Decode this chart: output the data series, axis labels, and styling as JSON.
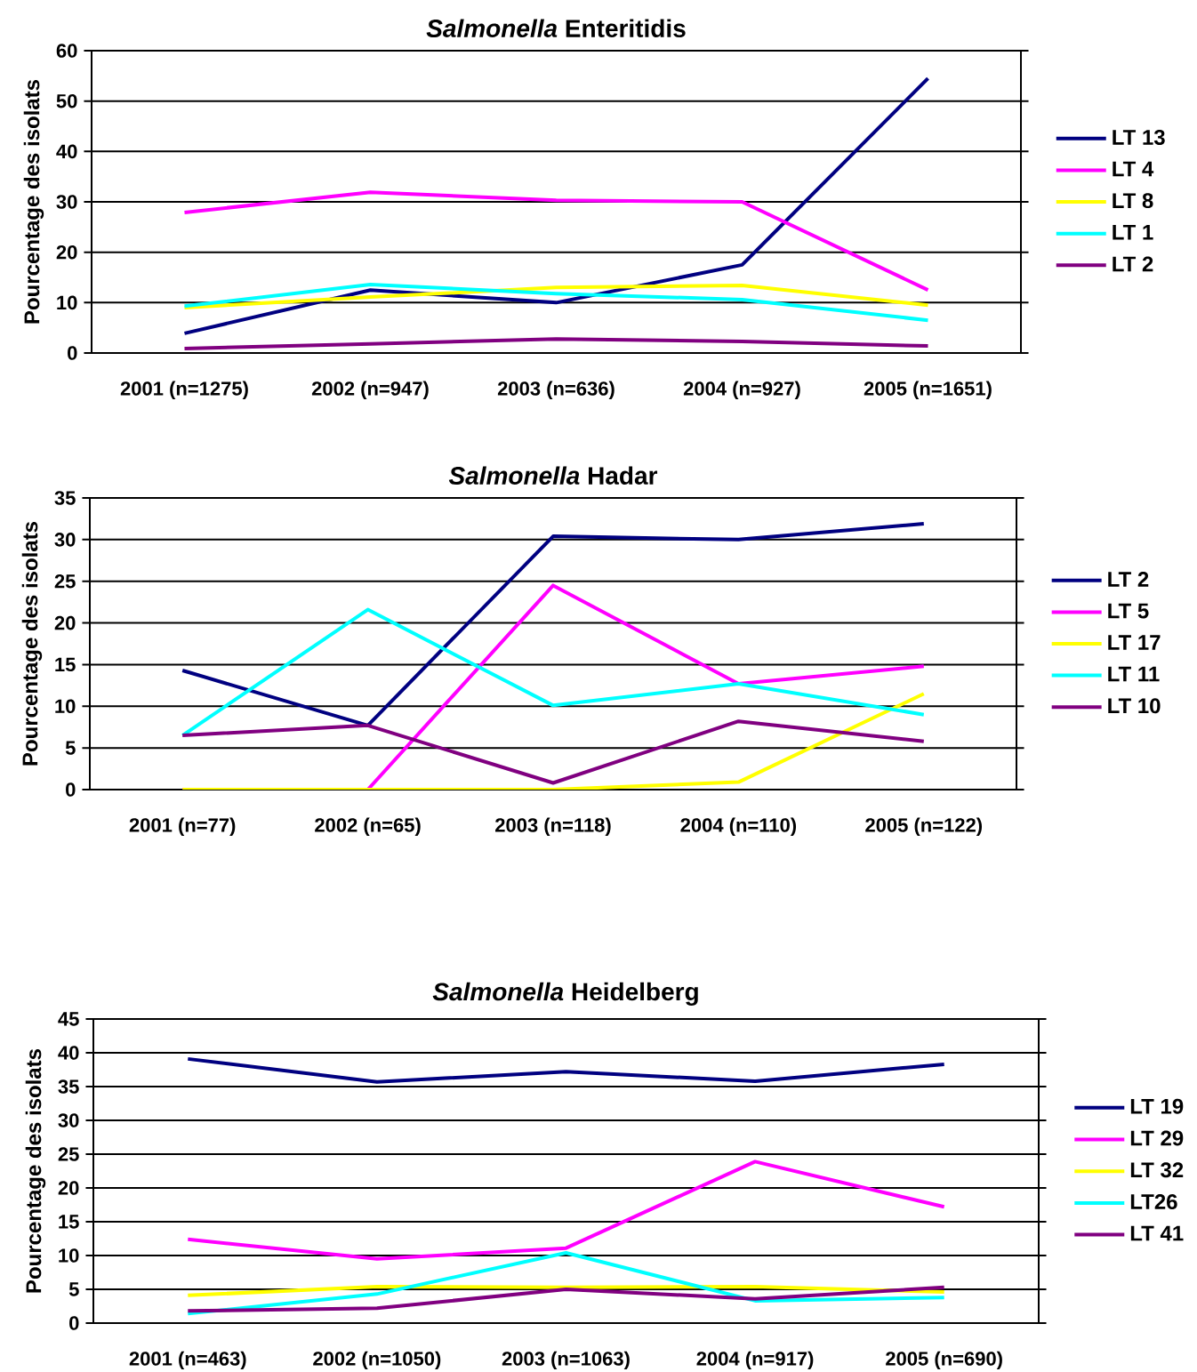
{
  "chart_data": [
    {
      "type": "line",
      "title": "*Salmonella* Enteritidis",
      "ylabel": "Pourcentage des isolats",
      "categories": [
        "2001 (n=1275)",
        "2002 (n=947)",
        "2003 (n=636)",
        "2004 (n=927)",
        "2005 (n=1651)"
      ],
      "ylim": [
        0,
        60
      ],
      "yticks": [
        0,
        10,
        20,
        30,
        40,
        50,
        60
      ],
      "grid": "y",
      "legend": "right",
      "series": [
        {
          "name": "LT 13",
          "color": "#000080",
          "values": [
            3.9,
            12.5,
            10,
            17.5,
            54.5
          ]
        },
        {
          "name": "LT 4",
          "color": "#ff00ff",
          "values": [
            27.9,
            31.9,
            30.3,
            30,
            12.5
          ]
        },
        {
          "name": "LT 8",
          "color": "#ffff00",
          "values": [
            9,
            11.1,
            13,
            13.4,
            9.5
          ]
        },
        {
          "name": "LT 1",
          "color": "#00ffff",
          "values": [
            9.3,
            13.6,
            11.8,
            10.6,
            6.5
          ]
        },
        {
          "name": "LT 2",
          "color": "#800080",
          "values": [
            0.9,
            1.8,
            2.8,
            2.3,
            1.4
          ]
        }
      ]
    },
    {
      "type": "line",
      "title": "*Salmonella* Hadar",
      "ylabel": "Pourcentage des isolats",
      "categories": [
        "2001 (n=77)",
        "2002 (n=65)",
        "2003 (n=118)",
        "2004 (n=110)",
        "2005 (n=122)"
      ],
      "ylim": [
        0,
        35
      ],
      "yticks": [
        0,
        5,
        10,
        15,
        20,
        25,
        30,
        35
      ],
      "grid": "y",
      "legend": "right",
      "series": [
        {
          "name": "LT 2",
          "color": "#000080",
          "values": [
            14.3,
            7.7,
            30.4,
            30,
            31.9
          ]
        },
        {
          "name": "LT 5",
          "color": "#ff00ff",
          "values": [
            0,
            0,
            24.5,
            12.7,
            14.8
          ]
        },
        {
          "name": "LT 17",
          "color": "#ffff00",
          "values": [
            0,
            0,
            0,
            0.9,
            11.5
          ]
        },
        {
          "name": "LT 11",
          "color": "#00ffff",
          "values": [
            6.5,
            21.6,
            10.1,
            12.7,
            9
          ]
        },
        {
          "name": "LT 10",
          "color": "#800080",
          "values": [
            6.5,
            7.7,
            0.8,
            8.2,
            5.8
          ]
        }
      ]
    },
    {
      "type": "line",
      "title": "*Salmonella* Heidelberg",
      "ylabel": "Pourcentage des isolats",
      "categories": [
        "2001 (n=463)",
        "2002 (n=1050)",
        "2003 (n=1063)",
        "2004 (n=917)",
        "2005 (n=690)"
      ],
      "ylim": [
        0,
        45
      ],
      "yticks": [
        0,
        5,
        10,
        15,
        20,
        25,
        30,
        35,
        40,
        45
      ],
      "grid": "y",
      "legend": "right",
      "series": [
        {
          "name": "LT 19",
          "color": "#000080",
          "values": [
            39.1,
            35.7,
            37.2,
            35.8,
            38.3
          ]
        },
        {
          "name": "LT 29",
          "color": "#ff00ff",
          "values": [
            12.4,
            9.5,
            11.1,
            23.9,
            17.2
          ]
        },
        {
          "name": "LT 32",
          "color": "#ffff00",
          "values": [
            4.1,
            5.4,
            5.3,
            5.4,
            4.6
          ]
        },
        {
          "name": "LT26",
          "color": "#00ffff",
          "values": [
            1.4,
            4.3,
            10.4,
            3.3,
            3.8
          ]
        },
        {
          "name": "LT 41",
          "color": "#800080",
          "values": [
            1.8,
            2.2,
            5,
            3.6,
            5.3
          ]
        }
      ]
    }
  ]
}
